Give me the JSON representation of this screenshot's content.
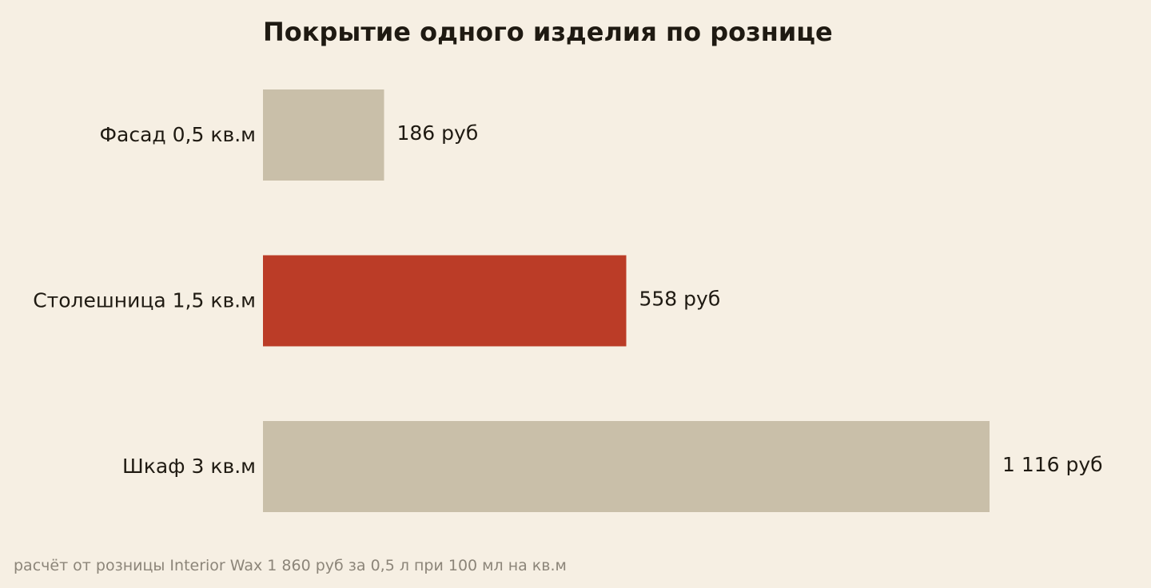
{
  "chart_data": {
    "type": "bar",
    "orientation": "horizontal",
    "title": "Покрытие одного изделия по рознице",
    "categories": [
      "Фасад 0,5 кв.м",
      "Столешница 1,5 кв.м",
      "Шкаф 3 кв.м"
    ],
    "values": [
      186,
      558,
      1116
    ],
    "data_labels": [
      "186 руб",
      "558 руб",
      "1 116 руб"
    ],
    "unit": "руб",
    "highlight_index": 1,
    "xlim": [
      0,
      1116
    ],
    "grid": false,
    "axes_visible": false,
    "colors": {
      "bar": "#c9bfa9",
      "highlight": "#bb3c27",
      "background": "#f6efe3",
      "text": "#1f1a12",
      "footnote": "#8c8579"
    }
  },
  "footnote": "расчёт от розницы Interior Wax 1 860 руб за 0,5 л при 100 мл на кв.м"
}
